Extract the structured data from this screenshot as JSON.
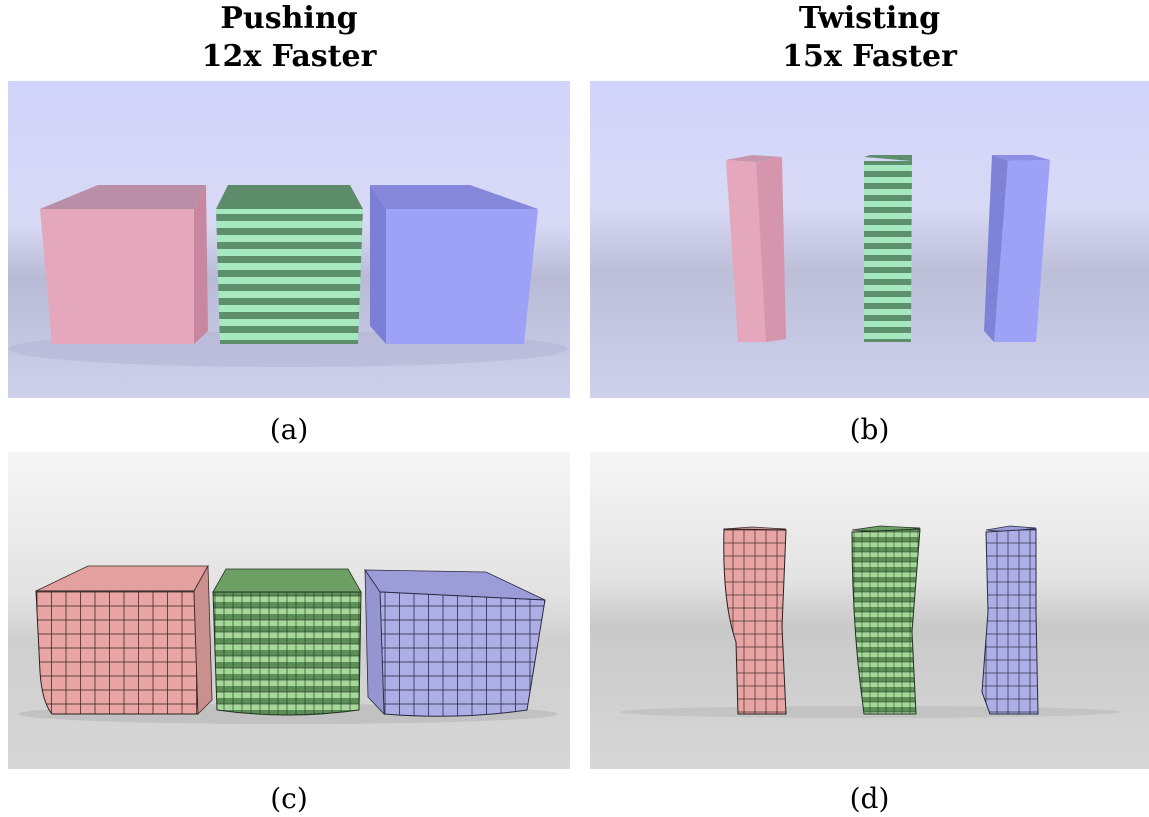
{
  "columns": [
    {
      "title_line1": "Pushing",
      "title_line2": "12x Faster"
    },
    {
      "title_line1": "Twisting",
      "title_line2": "15x Faster"
    }
  ],
  "captions": {
    "a": "(a)",
    "b": "(b)",
    "c": "(c)",
    "d": "(d)"
  },
  "colors": {
    "pink": "#e6a7bc",
    "green_light": "#a6e8bf",
    "green_dark": "#5d8f6c",
    "blue": "#9ea2f7",
    "backdrop_blue": "#d3d7fb",
    "backdrop_gray": "#d2d2d2",
    "mesh_pink": "#e9a5a3",
    "mesh_green": "#a6d89a",
    "mesh_blue": "#aeaee6"
  }
}
